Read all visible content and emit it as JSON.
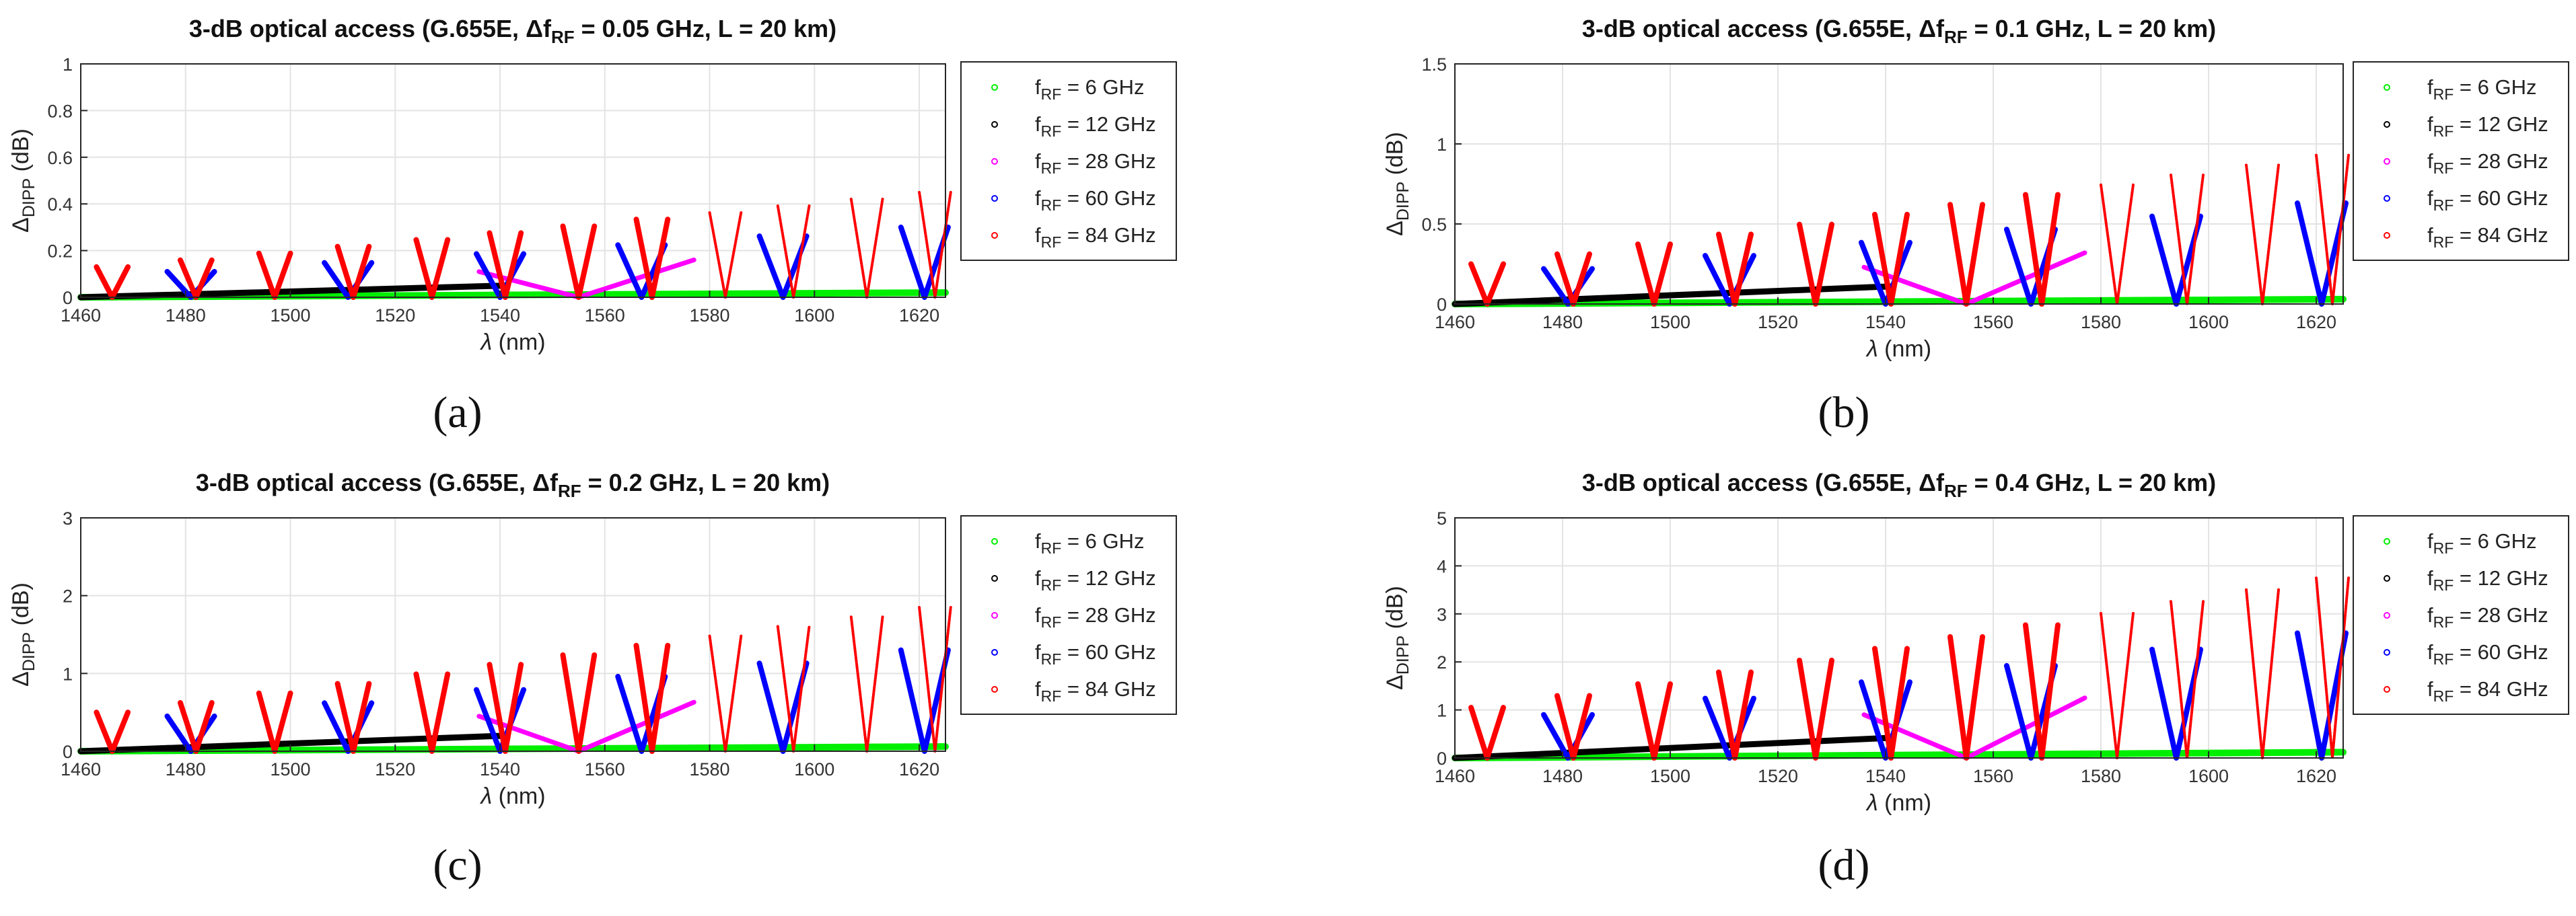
{
  "figure": {
    "panels": [
      {
        "panel_label": "(a)",
        "title": {
          "main": "3-dB optical access (G.655E, ",
          "delta": "Δ",
          "f": "f",
          "sub": "RF",
          "rest": " = 0.05 GHz, L = 20 km)"
        },
        "ylabel": {
          "delta": "Δ",
          "sub": "DIPP",
          "unit": " (dB)"
        },
        "xlabel": {
          "lambda": "λ",
          "unit": " (nm)"
        }
      },
      {
        "panel_label": "(b)",
        "title": {
          "main": "3-dB optical access (G.655E, ",
          "delta": "Δ",
          "f": "f",
          "sub": "RF",
          "rest": " = 0.1 GHz, L = 20 km)"
        },
        "ylabel": {
          "delta": "Δ",
          "sub": "DIPP",
          "unit": " (dB)"
        },
        "xlabel": {
          "lambda": "λ",
          "unit": " (nm)"
        }
      },
      {
        "panel_label": "(c)",
        "title": {
          "main": "3-dB optical access (G.655E, ",
          "delta": "Δ",
          "f": "f",
          "sub": "RF",
          "rest": " = 0.2 GHz, L = 20 km)"
        },
        "ylabel": {
          "delta": "Δ",
          "sub": "DIPP",
          "unit": " (dB)"
        },
        "xlabel": {
          "lambda": "λ",
          "unit": " (nm)"
        }
      },
      {
        "panel_label": "(d)",
        "title": {
          "main": "3-dB optical access (G.655E, ",
          "delta": "Δ",
          "f": "f",
          "sub": "RF",
          "rest": " = 0.4 GHz, L = 20 km)"
        },
        "ylabel": {
          "delta": "Δ",
          "sub": "DIPP",
          "unit": " (dB)"
        },
        "xlabel": {
          "lambda": "λ",
          "unit": " (nm)"
        }
      }
    ]
  },
  "chart_data": [
    {
      "type": "scatter",
      "title": "3-dB optical access (G.655E, ΔfRF = 0.05 GHz, L = 20 km)",
      "xlabel": "λ (nm)",
      "ylabel": "ΔDIPP (dB)",
      "xlim": [
        1460,
        1625
      ],
      "ylim": [
        0,
        1
      ],
      "xticks": [
        1460,
        1480,
        1500,
        1520,
        1540,
        1560,
        1580,
        1600,
        1620
      ],
      "yticks": [
        0,
        0.2,
        0.4,
        0.6,
        0.8,
        1
      ],
      "ytick_labels": [
        "0",
        "0.2",
        "0.4",
        "0.6",
        "0.8",
        "1"
      ],
      "grid": true,
      "legend_position": "outside-right",
      "series": [
        {
          "name": "f_RF = 6 GHz",
          "label": "f",
          "label_sub": "RF",
          "label_rest": " = 6 GHz",
          "color": "#00ee00",
          "shape": "ramp",
          "x_start": 1460,
          "x_end": 1625,
          "y_start": 0,
          "y_end": 0.02
        },
        {
          "name": "f_RF = 12 GHz",
          "label": "f",
          "label_sub": "RF",
          "label_rest": " = 12 GHz",
          "color": "#000000",
          "shape": "ramp",
          "x_start": 1460,
          "x_end": 1541,
          "y_start": 0,
          "y_end": 0.05
        },
        {
          "name": "f_RF = 28 GHz",
          "label": "f",
          "label_sub": "RF",
          "label_rest": " = 28 GHz",
          "color": "#ff00ff",
          "shape": "vee",
          "half_width": 22,
          "peak": 0.11,
          "centers": [
            1555
          ],
          "x_lo": 1536,
          "x_hi": 1577,
          "right_peak": 0.16
        },
        {
          "name": "f_RF = 60 GHz",
          "label": "f",
          "label_sub": "RF",
          "label_rest": " = 60 GHz",
          "color": "#0000ff",
          "shape": "vee",
          "half_width": 4.5,
          "peak": 0.11,
          "peak_growth": 0.3,
          "centers": [
            1481,
            1511,
            1540,
            1567,
            1594,
            1621
          ]
        },
        {
          "name": "f_RF = 84 GHz",
          "label": "f",
          "label_sub": "RF",
          "label_rest": " = 84 GHz",
          "color": "#ff0000",
          "shape": "vee",
          "half_width": 3,
          "peak": 0.13,
          "peak_growth": 0.45,
          "centers": [
            1466,
            1482,
            1497,
            1512,
            1527,
            1541,
            1555,
            1569,
            1583,
            1596,
            1610,
            1623
          ]
        }
      ]
    },
    {
      "type": "scatter",
      "title": "3-dB optical access (G.655E, ΔfRF = 0.1 GHz, L = 20 km)",
      "xlabel": "λ (nm)",
      "ylabel": "ΔDIPP (dB)",
      "xlim": [
        1460,
        1625
      ],
      "ylim": [
        0,
        1.5
      ],
      "xticks": [
        1460,
        1480,
        1500,
        1520,
        1540,
        1560,
        1580,
        1600,
        1620
      ],
      "yticks": [
        0,
        0.5,
        1,
        1.5
      ],
      "ytick_labels": [
        "0",
        "0.5",
        "1",
        "1.5"
      ],
      "grid": true,
      "legend_position": "outside-right",
      "series": [
        {
          "name": "f_RF = 6 GHz",
          "label": "f",
          "label_sub": "RF",
          "label_rest": " = 6 GHz",
          "color": "#00ee00",
          "shape": "ramp",
          "x_start": 1460,
          "x_end": 1625,
          "y_start": 0,
          "y_end": 0.03
        },
        {
          "name": "f_RF = 12 GHz",
          "label": "f",
          "label_sub": "RF",
          "label_rest": " = 12 GHz",
          "color": "#000000",
          "shape": "ramp",
          "x_start": 1460,
          "x_end": 1541,
          "y_start": 0,
          "y_end": 0.11
        },
        {
          "name": "f_RF = 28 GHz",
          "label": "f",
          "label_sub": "RF",
          "label_rest": " = 28 GHz",
          "color": "#ff00ff",
          "shape": "vee",
          "half_width": 22,
          "peak": 0.23,
          "centers": [
            1555
          ],
          "x_lo": 1536,
          "x_hi": 1577,
          "right_peak": 0.32
        },
        {
          "name": "f_RF = 60 GHz",
          "label": "f",
          "label_sub": "RF",
          "label_rest": " = 60 GHz",
          "color": "#0000ff",
          "shape": "vee",
          "half_width": 4.5,
          "peak": 0.22,
          "peak_growth": 0.63,
          "centers": [
            1481,
            1511,
            1540,
            1567,
            1594,
            1621
          ]
        },
        {
          "name": "f_RF = 84 GHz",
          "label": "f",
          "label_sub": "RF",
          "label_rest": " = 84 GHz",
          "color": "#ff0000",
          "shape": "vee",
          "half_width": 3,
          "peak": 0.25,
          "peak_growth": 0.93,
          "centers": [
            1466,
            1482,
            1497,
            1512,
            1527,
            1541,
            1555,
            1569,
            1583,
            1596,
            1610,
            1623
          ]
        }
      ]
    },
    {
      "type": "scatter",
      "title": "3-dB optical access (G.655E, ΔfRF = 0.2 GHz, L = 20 km)",
      "xlabel": "λ (nm)",
      "ylabel": "ΔDIPP (dB)",
      "xlim": [
        1460,
        1625
      ],
      "ylim": [
        0,
        3
      ],
      "xticks": [
        1460,
        1480,
        1500,
        1520,
        1540,
        1560,
        1580,
        1600,
        1620
      ],
      "yticks": [
        0,
        1,
        2,
        3
      ],
      "ytick_labels": [
        "0",
        "1",
        "2",
        "3"
      ],
      "grid": true,
      "legend_position": "outside-right",
      "series": [
        {
          "name": "f_RF = 6 GHz",
          "label": "f",
          "label_sub": "RF",
          "label_rest": " = 6 GHz",
          "color": "#00ee00",
          "shape": "ramp",
          "x_start": 1460,
          "x_end": 1625,
          "y_start": 0,
          "y_end": 0.06
        },
        {
          "name": "f_RF = 12 GHz",
          "label": "f",
          "label_sub": "RF",
          "label_rest": " = 12 GHz",
          "color": "#000000",
          "shape": "ramp",
          "x_start": 1460,
          "x_end": 1541,
          "y_start": 0,
          "y_end": 0.2
        },
        {
          "name": "f_RF = 28 GHz",
          "label": "f",
          "label_sub": "RF",
          "label_rest": " = 28 GHz",
          "color": "#ff00ff",
          "shape": "vee",
          "half_width": 22,
          "peak": 0.45,
          "centers": [
            1555
          ],
          "x_lo": 1536,
          "x_hi": 1577,
          "right_peak": 0.63
        },
        {
          "name": "f_RF = 60 GHz",
          "label": "f",
          "label_sub": "RF",
          "label_rest": " = 60 GHz",
          "color": "#0000ff",
          "shape": "vee",
          "half_width": 4.5,
          "peak": 0.45,
          "peak_growth": 1.3,
          "centers": [
            1481,
            1511,
            1540,
            1567,
            1594,
            1621
          ]
        },
        {
          "name": "f_RF = 84 GHz",
          "label": "f",
          "label_sub": "RF",
          "label_rest": " = 84 GHz",
          "color": "#ff0000",
          "shape": "vee",
          "half_width": 3,
          "peak": 0.5,
          "peak_growth": 1.85,
          "centers": [
            1466,
            1482,
            1497,
            1512,
            1527,
            1541,
            1555,
            1569,
            1583,
            1596,
            1610,
            1623
          ]
        }
      ]
    },
    {
      "type": "scatter",
      "title": "3-dB optical access (G.655E, ΔfRF = 0.4 GHz, L = 20 km)",
      "xlabel": "λ (nm)",
      "ylabel": "ΔDIPP (dB)",
      "xlim": [
        1460,
        1625
      ],
      "ylim": [
        0,
        5
      ],
      "xticks": [
        1460,
        1480,
        1500,
        1520,
        1540,
        1560,
        1580,
        1600,
        1620
      ],
      "yticks": [
        0,
        1,
        2,
        3,
        4,
        5
      ],
      "ytick_labels": [
        "0",
        "1",
        "2",
        "3",
        "4",
        "5"
      ],
      "grid": true,
      "legend_position": "outside-right",
      "series": [
        {
          "name": "f_RF = 6 GHz",
          "label": "f",
          "label_sub": "RF",
          "label_rest": " = 6 GHz",
          "color": "#00ee00",
          "shape": "ramp",
          "x_start": 1460,
          "x_end": 1625,
          "y_start": 0,
          "y_end": 0.12
        },
        {
          "name": "f_RF = 12 GHz",
          "label": "f",
          "label_sub": "RF",
          "label_rest": " = 12 GHz",
          "color": "#000000",
          "shape": "ramp",
          "x_start": 1460,
          "x_end": 1541,
          "y_start": 0,
          "y_end": 0.42
        },
        {
          "name": "f_RF = 28 GHz",
          "label": "f",
          "label_sub": "RF",
          "label_rest": " = 28 GHz",
          "color": "#ff00ff",
          "shape": "vee",
          "half_width": 22,
          "peak": 0.9,
          "centers": [
            1555
          ],
          "x_lo": 1536,
          "x_hi": 1577,
          "right_peak": 1.25
        },
        {
          "name": "f_RF = 60 GHz",
          "label": "f",
          "label_sub": "RF",
          "label_rest": " = 60 GHz",
          "color": "#0000ff",
          "shape": "vee",
          "half_width": 4.5,
          "peak": 0.9,
          "peak_growth": 2.6,
          "centers": [
            1481,
            1511,
            1540,
            1567,
            1594,
            1621
          ]
        },
        {
          "name": "f_RF = 84 GHz",
          "label": "f",
          "label_sub": "RF",
          "label_rest": " = 84 GHz",
          "color": "#ff0000",
          "shape": "vee",
          "half_width": 3,
          "peak": 1.05,
          "peak_growth": 3.75,
          "centers": [
            1466,
            1482,
            1497,
            1512,
            1527,
            1541,
            1555,
            1569,
            1583,
            1596,
            1610,
            1623
          ]
        }
      ]
    }
  ]
}
